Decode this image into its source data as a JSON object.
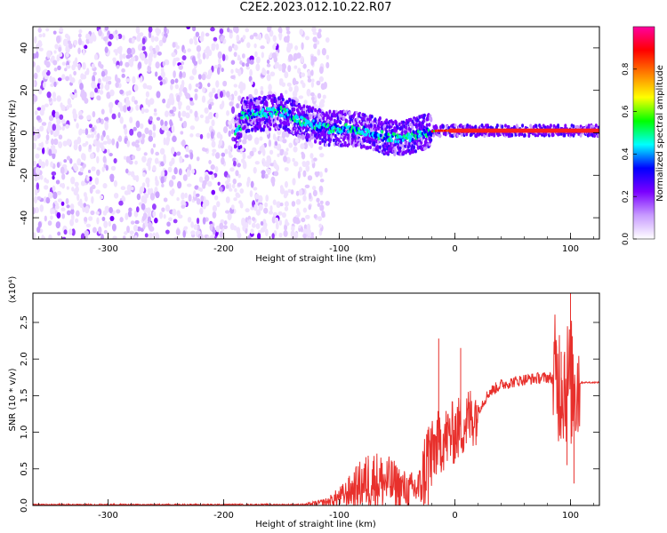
{
  "title": "C2E2.2023.012.10.22.R07",
  "chart_data": [
    {
      "type": "heatmap",
      "xlabel": "Height of straight line (km)",
      "ylabel": "Frequency (Hz)",
      "xlim": [
        -365,
        125
      ],
      "ylim": [
        -50,
        50
      ],
      "xticks": [
        -300,
        -200,
        -100,
        0,
        100
      ],
      "yticks": [
        -40,
        -20,
        0,
        20,
        40
      ],
      "colorbar": {
        "label": "Normalized spectral amplitude",
        "range": [
          0.0,
          1.0
        ],
        "ticks": [
          "0.0",
          "0.2",
          "0.4",
          "0.6",
          "0.8"
        ],
        "colors": [
          "#ffffff",
          "#c89bff",
          "#7a00ff",
          "#0000ff",
          "#00ffff",
          "#00ff00",
          "#ffff00",
          "#ff8000",
          "#ff0000",
          "#ff00a0"
        ]
      },
      "noise_region_x": [
        -365,
        -125
      ],
      "ridge": [
        {
          "x": -185,
          "f": 8
        },
        {
          "x": -170,
          "f": 9
        },
        {
          "x": -150,
          "f": 10
        },
        {
          "x": -130,
          "f": 5
        },
        {
          "x": -110,
          "f": 2
        },
        {
          "x": -90,
          "f": 2
        },
        {
          "x": -70,
          "f": 0
        },
        {
          "x": -60,
          "f": -2
        },
        {
          "x": -45,
          "f": -3
        },
        {
          "x": -30,
          "f": 0
        },
        {
          "x": -15,
          "f": 1
        },
        {
          "x": 0,
          "f": 1
        },
        {
          "x": 50,
          "f": 1
        },
        {
          "x": 100,
          "f": 1
        },
        {
          "x": 125,
          "f": 1
        }
      ]
    },
    {
      "type": "line",
      "xlabel": "Height of straight line (km)",
      "ylabel": "SNR (10 * v/v)",
      "yunit": "(x10⁴)",
      "xlim": [
        -365,
        125
      ],
      "ylim": [
        0,
        2.9
      ],
      "xticks": [
        -300,
        -200,
        -100,
        0,
        100
      ],
      "yticks": [
        0.0,
        0.5,
        1.0,
        1.5,
        2.0,
        2.5
      ],
      "series": [
        {
          "color": "#e8302c",
          "envelope": [
            {
              "x": -365,
              "y": 0.01
            },
            {
              "x": -130,
              "y": 0.01
            },
            {
              "x": -110,
              "y": 0.05
            },
            {
              "x": -95,
              "y": 0.15
            },
            {
              "x": -80,
              "y": 0.3
            },
            {
              "x": -70,
              "y": 0.35
            },
            {
              "x": -55,
              "y": 0.3
            },
            {
              "x": -40,
              "y": 0.2
            },
            {
              "x": -30,
              "y": 0.25
            },
            {
              "x": -25,
              "y": 0.55
            },
            {
              "x": -15,
              "y": 0.85
            },
            {
              "x": 0,
              "y": 1.0
            },
            {
              "x": 10,
              "y": 1.15
            },
            {
              "x": 20,
              "y": 1.3
            },
            {
              "x": 30,
              "y": 1.55
            },
            {
              "x": 40,
              "y": 1.65
            },
            {
              "x": 60,
              "y": 1.72
            },
            {
              "x": 80,
              "y": 1.75
            },
            {
              "x": 95,
              "y": 1.7
            },
            {
              "x": 105,
              "y": 1.65
            },
            {
              "x": 110,
              "y": 1.68
            },
            {
              "x": 125,
              "y": 1.68
            }
          ],
          "spikes": [
            {
              "x": -14,
              "y": 2.28
            },
            {
              "x": 5,
              "y": 2.15
            },
            {
              "x": -75,
              "y": 0.68
            },
            {
              "x": 100,
              "y": 2.9
            },
            {
              "x": 103,
              "y": 0.3
            },
            {
              "x": 97,
              "y": 0.55
            },
            {
              "x": 92,
              "y": 2.1
            }
          ]
        }
      ]
    }
  ]
}
